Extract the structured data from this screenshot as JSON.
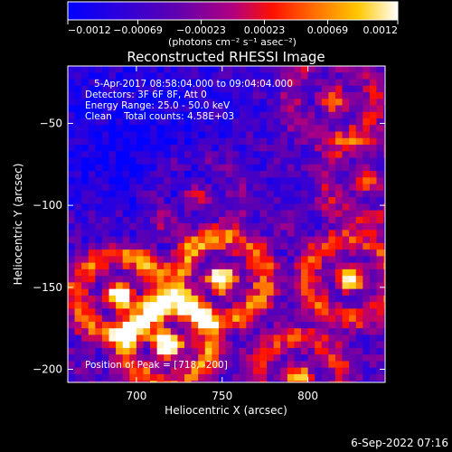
{
  "chart_data": {
    "type": "heatmap",
    "title": "Reconstructed RHESSI Image",
    "xlabel": "Heliocentric X (arcsec)",
    "ylabel": "Heliocentric Y (arcsec)",
    "xlim": [
      660,
      845
    ],
    "ylim": [
      -208,
      -15
    ],
    "x_ticks": [
      700,
      750,
      800
    ],
    "y_ticks": [
      -50,
      -100,
      -150,
      -200
    ],
    "x_tick_labels": [
      "700",
      "750",
      "800"
    ],
    "y_tick_labels": [
      "−50",
      "−100",
      "−150",
      "−200"
    ],
    "colorbar": {
      "min": -0.0012,
      "max": 0.0012,
      "ticks": [
        -0.0012,
        -0.00069,
        -0.00023,
        0.00023,
        0.00069,
        0.0012
      ],
      "tick_labels": [
        "−0.0012",
        "−0.00069",
        "−0.00023",
        "0.00023",
        "0.00069",
        "0.0012"
      ],
      "label": "(photons cm⁻² s⁻¹ asec⁻²)",
      "colors": [
        "#0000ff",
        "#5a00b4",
        "#a000a0",
        "#e60000",
        "#ff6400",
        "#ffd200",
        "#ffffff"
      ]
    },
    "annotations": [
      "5-Apr-2017 08:58:04.000 to 09:04:04.000",
      "Detectors: 3F 6F 8F, Att 0",
      "Energy Range: 25.0 - 50.0 keV",
      "Clean    Total counts: 4.58E+03"
    ],
    "peak_label": "Position of Peak = [",
    "peak_value": "718, -200]",
    "pixel_size_arcsec": 4,
    "sources": [
      {
        "x": 690,
        "y": -155,
        "amp": 1.0
      },
      {
        "x": 750,
        "y": -145,
        "amp": 0.95
      },
      {
        "x": 718,
        "y": -185,
        "amp": 1.0
      },
      {
        "x": 795,
        "y": -205,
        "amp": 0.7
      },
      {
        "x": 825,
        "y": -145,
        "amp": 0.8
      },
      {
        "x": 815,
        "y": -35,
        "amp": 0.55
      },
      {
        "x": 835,
        "y": -85,
        "amp": 0.5
      },
      {
        "x": 735,
        "y": -95,
        "amp": 0.35
      }
    ]
  },
  "footer": {
    "timestamp": "6-Sep-2022 07:16"
  }
}
